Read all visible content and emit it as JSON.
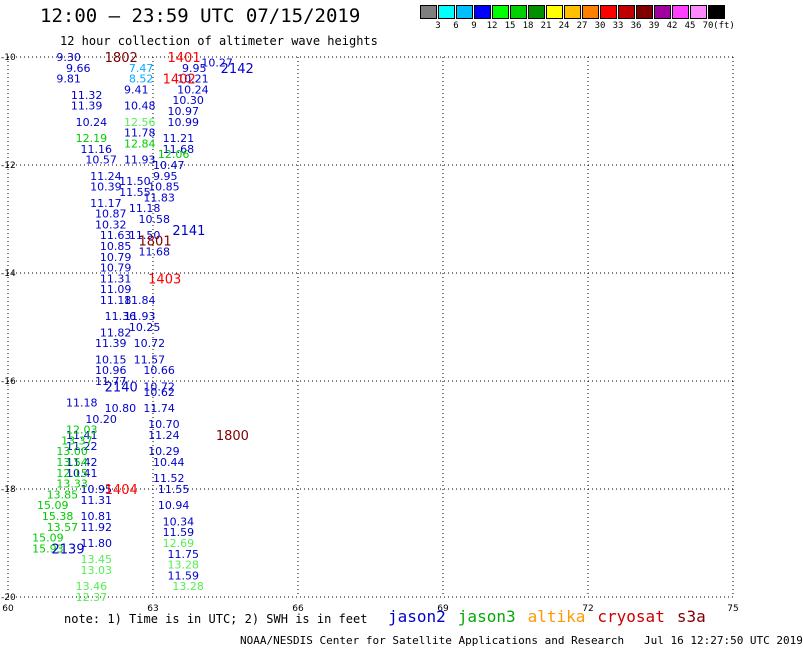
{
  "header": {
    "title": "12:00 – 23:59 UTC 07/15/2019",
    "subtitle": "12 hour collection of altimeter wave heights"
  },
  "color_scale": {
    "unit": "(ft)",
    "colors": [
      "#7f7f7f",
      "#00ffff",
      "#00bfff",
      "#0000ff",
      "#00ff00",
      "#00d000",
      "#009000",
      "#ffff00",
      "#ffc000",
      "#ff8000",
      "#ff0000",
      "#c00000",
      "#800000",
      "#a000a0",
      "#ff40ff",
      "#ff88ff",
      "#000000"
    ],
    "labels": [
      "3",
      "6",
      "9",
      "12",
      "15",
      "18",
      "21",
      "24",
      "27",
      "30",
      "33",
      "36",
      "39",
      "42",
      "45",
      "70"
    ]
  },
  "map": {
    "lon_range": [
      60,
      75
    ],
    "lat_range": [
      -20,
      -10
    ],
    "lon_ticks": [
      "60",
      "63",
      "66",
      "69",
      "72",
      "75"
    ],
    "lat_ticks": [
      "-10",
      "-12",
      "-14",
      "-16",
      "-18",
      "-20"
    ],
    "grid": "dotted"
  },
  "tracks": [
    {
      "sat": "jason2",
      "color": "#0000cc",
      "values": [
        [
          "9.30",
          61.0,
          -10.0
        ],
        [
          "9.66",
          61.2,
          -10.2
        ],
        [
          "9.81",
          61.0,
          -10.4
        ],
        [
          "11.32",
          61.3,
          -10.7
        ],
        [
          "11.39",
          61.3,
          -10.9
        ],
        [
          "10.24",
          61.4,
          -11.2
        ],
        [
          "11.16",
          61.5,
          -11.7
        ],
        [
          "10.57",
          61.6,
          -11.9
        ],
        [
          "11.24",
          61.7,
          -12.2
        ],
        [
          "10.39",
          61.7,
          -12.4
        ],
        [
          "11.17",
          61.7,
          -12.7
        ],
        [
          "10.87",
          61.8,
          -12.9
        ],
        [
          "10.32",
          61.8,
          -13.1
        ],
        [
          "11.63",
          61.9,
          -13.3
        ],
        [
          "10.85",
          61.9,
          -13.5
        ],
        [
          "10.79",
          61.9,
          -13.7
        ],
        [
          "10.79",
          61.9,
          -13.9
        ],
        [
          "11.31",
          61.9,
          -14.1
        ],
        [
          "11.09",
          61.9,
          -14.3
        ],
        [
          "11.18",
          61.9,
          -14.5
        ],
        [
          "11.36",
          62.0,
          -14.8
        ],
        [
          "11.82",
          61.9,
          -15.1
        ],
        [
          "11.39",
          61.8,
          -15.3
        ],
        [
          "10.15",
          61.8,
          -15.6
        ],
        [
          "10.96",
          61.8,
          -15.8
        ],
        [
          "11.77",
          61.8,
          -16.0
        ],
        [
          "11.18",
          61.2,
          -16.4
        ],
        [
          "10.80",
          62.0,
          -16.5
        ],
        [
          "10.20",
          61.6,
          -16.7
        ],
        [
          "11.41",
          61.2,
          -17.0
        ],
        [
          "11.22",
          61.2,
          -17.2
        ],
        [
          "11.42",
          61.2,
          -17.5
        ],
        [
          "10.41",
          61.2,
          -17.7
        ],
        [
          "10.95",
          61.5,
          -18.0
        ],
        [
          "11.31",
          61.5,
          -18.2
        ],
        [
          "10.81",
          61.5,
          -18.5
        ],
        [
          "11.92",
          61.5,
          -18.7
        ],
        [
          "11.80",
          61.5,
          -19.0
        ],
        [
          "9.41",
          62.4,
          -10.6
        ],
        [
          "10.48",
          62.4,
          -10.9
        ],
        [
          "11.78",
          62.4,
          -11.4
        ],
        [
          "11.93",
          62.4,
          -11.9
        ],
        [
          "11.50",
          62.3,
          -12.3
        ],
        [
          "11.55",
          62.3,
          -12.5
        ],
        [
          "11.18",
          62.5,
          -12.8
        ],
        [
          "10.58",
          62.7,
          -13.0
        ],
        [
          "11.50",
          62.5,
          -13.3
        ],
        [
          "11.68",
          62.7,
          -13.6
        ],
        [
          "11.84",
          62.4,
          -14.5
        ],
        [
          "11.93",
          62.4,
          -14.8
        ],
        [
          "10.25",
          62.5,
          -15.0
        ],
        [
          "10.72",
          62.6,
          -15.3
        ],
        [
          "11.57",
          62.6,
          -15.6
        ],
        [
          "10.66",
          62.8,
          -15.8
        ],
        [
          "10.72",
          62.8,
          -16.1
        ],
        [
          "11.74",
          62.8,
          -16.5
        ],
        [
          "10.70",
          62.9,
          -16.8
        ],
        [
          "11.24",
          62.9,
          -17.0
        ],
        [
          "10.29",
          62.9,
          -17.3
        ],
        [
          "10.44",
          63.0,
          -17.5
        ],
        [
          "11.52",
          63.0,
          -17.8
        ],
        [
          "11.55",
          63.1,
          -18.0
        ],
        [
          "10.94",
          63.1,
          -18.3
        ],
        [
          "10.34",
          63.2,
          -18.6
        ],
        [
          "11.59",
          63.2,
          -18.8
        ],
        [
          "11.75",
          63.3,
          -19.2
        ],
        [
          "11.59",
          63.3,
          -19.6
        ],
        [
          "10.27",
          64.0,
          -10.1
        ],
        [
          "9.95",
          63.6,
          -10.2
        ],
        [
          "10.21",
          63.5,
          -10.4
        ],
        [
          "10.24",
          63.5,
          -10.6
        ],
        [
          "10.30",
          63.4,
          -10.8
        ],
        [
          "10.97",
          63.3,
          -11.0
        ],
        [
          "10.99",
          63.3,
          -11.2
        ],
        [
          "11.21",
          63.2,
          -11.5
        ],
        [
          "11.68",
          63.2,
          -11.7
        ],
        [
          "10.47",
          63.0,
          -12.0
        ],
        [
          "9.95",
          63.0,
          -12.2
        ],
        [
          "10.85",
          62.9,
          -12.4
        ],
        [
          "11.83",
          62.8,
          -12.6
        ],
        [
          "10.62",
          62.8,
          -16.2
        ]
      ]
    },
    {
      "sat": "jason3",
      "color": "#00cc00",
      "values": [
        [
          "12.19",
          61.4,
          -11.5
        ],
        [
          "12.84",
          62.4,
          -11.6
        ],
        [
          "12.06",
          63.1,
          -11.8
        ],
        [
          "12.03",
          61.2,
          -16.9
        ],
        [
          "13.37",
          61.1,
          -17.1
        ],
        [
          "13.00",
          61.0,
          -17.3
        ],
        [
          "13.54",
          61.0,
          -17.5
        ],
        [
          "12.15",
          61.0,
          -17.7
        ],
        [
          "13.33",
          61.0,
          -17.9
        ],
        [
          "13.85",
          60.8,
          -18.1
        ],
        [
          "15.09",
          60.6,
          -18.3
        ],
        [
          "15.38",
          60.7,
          -18.5
        ],
        [
          "13.57",
          60.8,
          -18.7
        ],
        [
          "15.09",
          60.5,
          -18.9
        ],
        [
          "15.93",
          60.5,
          -19.1
        ]
      ]
    },
    {
      "sat": "altika",
      "color": "#55ee55",
      "values": [
        [
          "12.56",
          62.4,
          -11.2
        ],
        [
          "13.45",
          61.5,
          -19.3
        ],
        [
          "13.03",
          61.5,
          -19.5
        ],
        [
          "13.46",
          61.4,
          -19.8
        ],
        [
          "12.37",
          61.4,
          -20.0
        ],
        [
          "12.69",
          63.2,
          -19.0
        ],
        [
          "13.28",
          63.3,
          -19.4
        ],
        [
          "13.28",
          63.4,
          -19.8
        ]
      ]
    },
    {
      "sat": "cryosat",
      "color": "#00aaff",
      "values": [
        [
          "7.47",
          62.5,
          -10.2
        ],
        [
          "8.52",
          62.5,
          -10.4
        ]
      ]
    }
  ],
  "time_labels": [
    {
      "text": "1802",
      "color": "#800000",
      "lon": 62.0,
      "lat": -10.0
    },
    {
      "text": "1401",
      "color": "#ff0000",
      "lon": 63.3,
      "lat": -10.0
    },
    {
      "text": "1402",
      "color": "#ff0000",
      "lon": 63.2,
      "lat": -10.4
    },
    {
      "text": "2142",
      "color": "#0000cc",
      "lon": 64.4,
      "lat": -10.2
    },
    {
      "text": "2141",
      "color": "#0000cc",
      "lon": 63.4,
      "lat": -13.2
    },
    {
      "text": "1801",
      "color": "#800000",
      "lon": 62.7,
      "lat": -13.4
    },
    {
      "text": "1403",
      "color": "#ff0000",
      "lon": 62.9,
      "lat": -14.1
    },
    {
      "text": "2140",
      "color": "#0000cc",
      "lon": 62.0,
      "lat": -16.1
    },
    {
      "text": "1800",
      "color": "#800000",
      "lon": 64.3,
      "lat": -17.0
    },
    {
      "text": "1404",
      "color": "#ff0000",
      "lon": 62.0,
      "lat": -18.0
    },
    {
      "text": "2139",
      "color": "#0000cc",
      "lon": 60.9,
      "lat": -19.1
    }
  ],
  "footer": {
    "note": "note: 1) Time is in UTC; 2) SWH is in feet",
    "legend": [
      {
        "name": "jason2",
        "color": "#0000cc"
      },
      {
        "name": "jason3",
        "color": "#00aa00"
      },
      {
        "name": "altika",
        "color": "#ff9900"
      },
      {
        "name": "cryosat",
        "color": "#cc0000"
      },
      {
        "name": "s3a",
        "color": "#800000"
      }
    ],
    "credit": "NOAA/NESDIS Center for Satellite Applications and Research   Jul 16 12:27:50 UTC 2019"
  }
}
